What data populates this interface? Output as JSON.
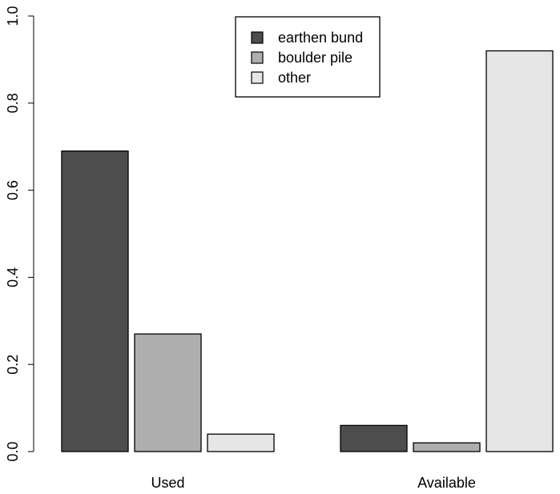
{
  "chart_data": {
    "type": "bar",
    "categories": [
      "Used",
      "Available"
    ],
    "series": [
      {
        "name": "earthen bund",
        "values": [
          0.69,
          0.06
        ],
        "color": "#4d4d4d"
      },
      {
        "name": "boulder pile",
        "values": [
          0.27,
          0.02
        ],
        "color": "#aeaeae"
      },
      {
        "name": "other",
        "values": [
          0.04,
          0.92
        ],
        "color": "#e6e6e6"
      }
    ],
    "ylim": [
      0,
      1
    ],
    "yticks": [
      "0.0",
      "0.2",
      "0.4",
      "0.6",
      "0.8",
      "1.0"
    ],
    "ytick_values": [
      0,
      0.2,
      0.4,
      0.6,
      0.8,
      1.0
    ],
    "title": "",
    "xlabel": "",
    "ylabel": "",
    "legend_position": "top-center",
    "grid": false
  }
}
